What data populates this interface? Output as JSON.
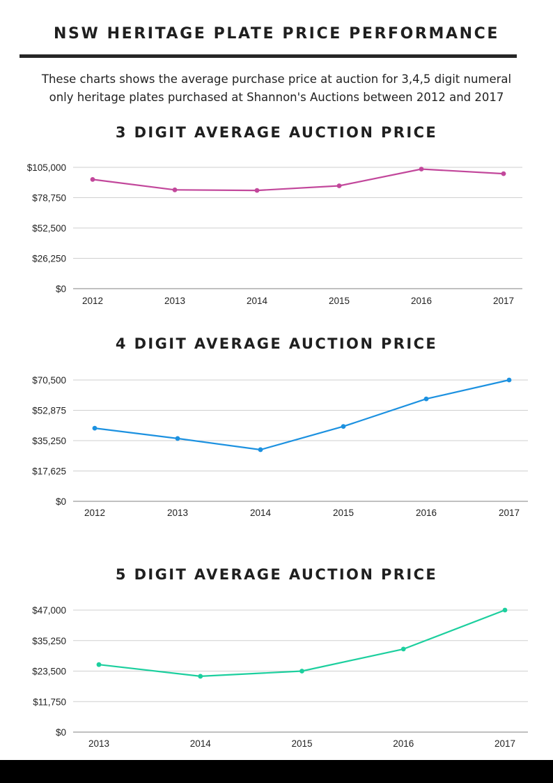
{
  "header": {
    "title": "NSW HERITAGE PLATE PRICE PERFORMANCE",
    "description_line1": "These charts shows the average purchase price at auction for 3,4,5 digit numeral",
    "description_line2": "only heritage plates purchased at Shannon's Auctions between 2012 and 2017"
  },
  "chart_data": [
    {
      "type": "line",
      "title": "3 DIGIT AVERAGE AUCTION PRICE",
      "categories": [
        "2012",
        "2013",
        "2014",
        "2015",
        "2016",
        "2017"
      ],
      "series": [
        {
          "values": [
            94500,
            85500,
            85000,
            89000,
            103500,
            99500
          ]
        }
      ],
      "ylim": [
        0,
        105000
      ],
      "yticks": [
        0,
        26250,
        52500,
        78750,
        105000
      ],
      "ytick_labels": [
        "$0",
        "$26,250",
        "$52,500",
        "$78,750",
        "$105,000"
      ],
      "color": "#c2479b",
      "grid": true
    },
    {
      "type": "line",
      "title": "4 DIGIT AVERAGE AUCTION PRICE",
      "categories": [
        "2012",
        "2013",
        "2014",
        "2015",
        "2016",
        "2017"
      ],
      "series": [
        {
          "values": [
            42500,
            36500,
            30000,
            43500,
            59500,
            70500
          ]
        }
      ],
      "ylim": [
        0,
        70500
      ],
      "yticks": [
        0,
        17625,
        35250,
        52875,
        70500
      ],
      "ytick_labels": [
        "$0",
        "$17,625",
        "$35,250",
        "$52,875",
        "$70,500"
      ],
      "color": "#1c91e0",
      "grid": true
    },
    {
      "type": "line",
      "title": "5 DIGIT AVERAGE AUCTION PRICE",
      "categories": [
        "2013",
        "2014",
        "2015",
        "2016",
        "2017"
      ],
      "series": [
        {
          "values": [
            26000,
            21500,
            23500,
            32000,
            47000
          ]
        }
      ],
      "ylim": [
        0,
        47000
      ],
      "yticks": [
        0,
        11750,
        23500,
        35250,
        47000
      ],
      "ytick_labels": [
        "$0",
        "$11,750",
        "$23,500",
        "$35,250",
        "$47,000"
      ],
      "color": "#1ccf9e",
      "grid": true
    }
  ]
}
